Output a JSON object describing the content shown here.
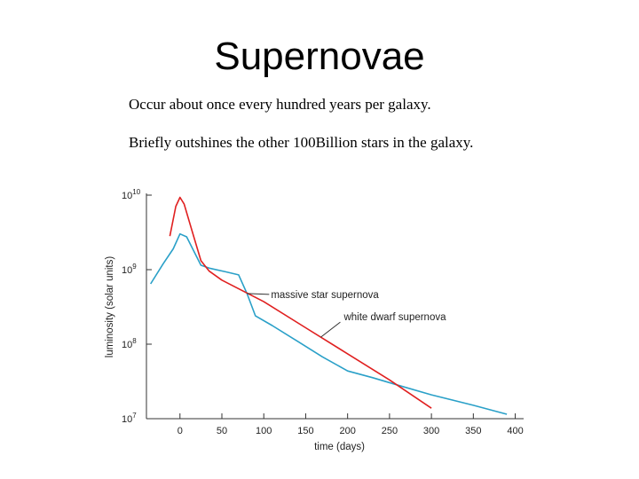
{
  "slide": {
    "title": "Supernovae",
    "bullets": [
      "Occur about once every hundred years per galaxy.",
      "Briefly outshines the other 100Billion stars in the galaxy."
    ]
  },
  "chart_data": {
    "type": "line",
    "xlabel": "time (days)",
    "ylabel": "luminosity (solar units)",
    "x_ticks": [
      0,
      50,
      100,
      150,
      200,
      250,
      300,
      350,
      400
    ],
    "y_ticks": [
      {
        "base": "10",
        "exp": "7",
        "value": 10000000
      },
      {
        "base": "10",
        "exp": "8",
        "value": 100000000
      },
      {
        "base": "10",
        "exp": "9",
        "value": 1000000000
      },
      {
        "base": "10",
        "exp": "10",
        "value": 10000000000
      }
    ],
    "xlim": [
      -40,
      410
    ],
    "ylim_log10": [
      7,
      10
    ],
    "y_scale": "log",
    "grid": false,
    "series": [
      {
        "name": "massive star supernova",
        "color": "#2aa0c8",
        "points": [
          [
            -35,
            8.81
          ],
          [
            -20,
            9.08
          ],
          [
            -8,
            9.28
          ],
          [
            0,
            9.48
          ],
          [
            8,
            9.44
          ],
          [
            25,
            9.06
          ],
          [
            35,
            9.02
          ],
          [
            55,
            8.97
          ],
          [
            70,
            8.93
          ],
          [
            80,
            8.68
          ],
          [
            90,
            8.38
          ],
          [
            110,
            8.25
          ],
          [
            140,
            8.04
          ],
          [
            170,
            7.83
          ],
          [
            200,
            7.64
          ],
          [
            230,
            7.55
          ],
          [
            260,
            7.45
          ],
          [
            300,
            7.32
          ],
          [
            350,
            7.18
          ],
          [
            390,
            7.06
          ]
        ]
      },
      {
        "name": "white dwarf supernova",
        "color": "#e02020",
        "points": [
          [
            -12,
            9.45
          ],
          [
            -5,
            9.85
          ],
          [
            0,
            9.97
          ],
          [
            5,
            9.88
          ],
          [
            15,
            9.5
          ],
          [
            25,
            9.12
          ],
          [
            35,
            8.98
          ],
          [
            50,
            8.86
          ],
          [
            100,
            8.57
          ],
          [
            150,
            8.22
          ],
          [
            200,
            7.87
          ],
          [
            250,
            7.52
          ],
          [
            300,
            7.14
          ]
        ]
      }
    ],
    "annotations": [
      {
        "text": "massive star supernova",
        "series": 0,
        "at_x": 80
      },
      {
        "text": "white dwarf supernova",
        "series": 1,
        "at_x": 168
      }
    ]
  }
}
